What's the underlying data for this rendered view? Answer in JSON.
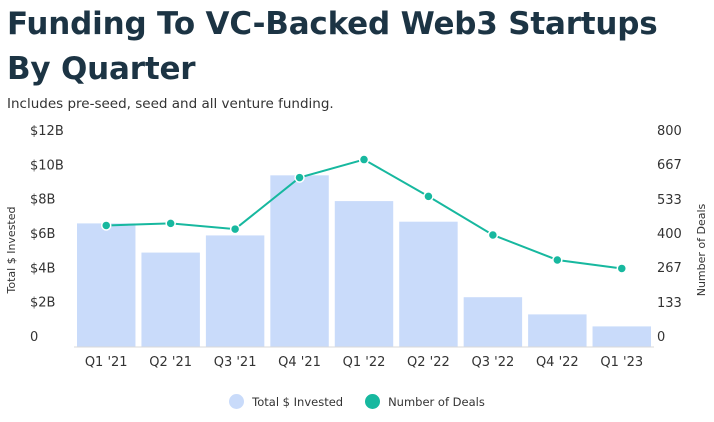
{
  "header": {
    "title_line1": "Funding To VC-Backed Web3 Startups",
    "title_line2": "By Quarter",
    "subtitle": "Includes pre-seed, seed and all venture funding."
  },
  "colors": {
    "bar": "#c9dbfa",
    "line": "#17b89f",
    "text": "#333333"
  },
  "chart_data": {
    "type": "bar",
    "title": "Funding To VC-Backed Web3 Startups By Quarter",
    "subtitle": "Includes pre-seed, seed and all venture funding.",
    "categories": [
      "Q1 '21",
      "Q2 '21",
      "Q3 '21",
      "Q4 '21",
      "Q1 '22",
      "Q2 '22",
      "Q3 '22",
      "Q4 '22",
      "Q1 '23"
    ],
    "series": [
      {
        "name": "Total $ Invested",
        "type": "bar",
        "axis": "left",
        "unit": "billion USD",
        "values": [
          7.2,
          5.5,
          6.5,
          10.0,
          8.5,
          7.3,
          2.9,
          1.9,
          1.2
        ]
      },
      {
        "name": "Number of Deals",
        "type": "line",
        "axis": "right",
        "values": [
          472,
          480,
          458,
          658,
          728,
          585,
          435,
          338,
          305
        ]
      }
    ],
    "y_left": {
      "label": "Total $ Invested",
      "range": [
        0,
        12
      ],
      "ticks": [
        0,
        2,
        4,
        6,
        8,
        10,
        12
      ],
      "tick_labels": [
        "0",
        "$2B",
        "$4B",
        "$6B",
        "$8B",
        "$10B",
        "$12B"
      ]
    },
    "y_right": {
      "label": "Number of Deals",
      "range": [
        0,
        800
      ],
      "ticks": [
        0,
        133,
        267,
        400,
        533,
        667,
        800
      ],
      "tick_labels": [
        "0",
        "133",
        "267",
        "400",
        "533",
        "667",
        "800"
      ]
    },
    "grid": false,
    "legend": "bottom-center"
  }
}
